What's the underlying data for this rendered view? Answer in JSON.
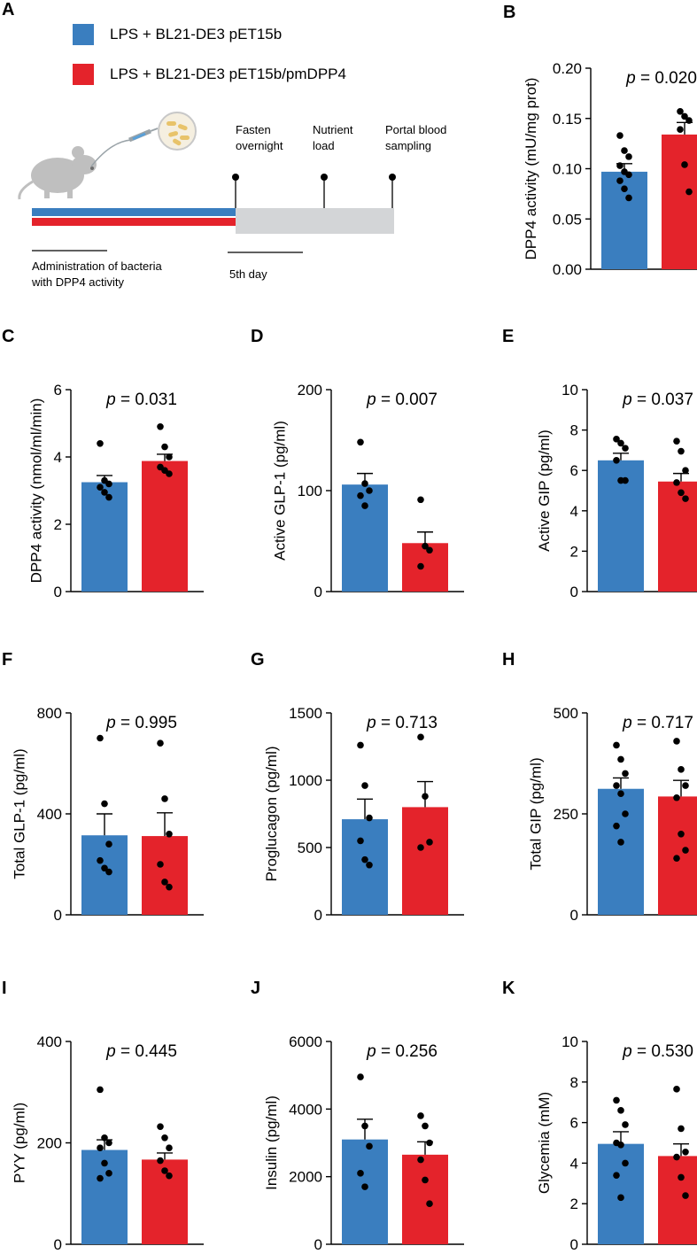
{
  "colors": {
    "group1": "#3a7ebf",
    "group2": "#e4232b",
    "timeline_gray": "#d3d5d7",
    "mouse": "#bfbfbf"
  },
  "legend": {
    "group1_label": "LPS + BL21-DE3 pET15b",
    "group2_label": "LPS + BL21-DE3 pET15b/pmDPP4"
  },
  "schematic": {
    "panel_label": "A",
    "icons": [
      "mouse-icon",
      "syringe-icon",
      "petri-dish-icon"
    ],
    "step1": [
      "Fasten",
      "overnight"
    ],
    "step2": [
      "Nutrient",
      "load"
    ],
    "step3": [
      "Portal blood",
      "sampling"
    ],
    "admin_label": [
      "Administration of bacteria",
      "with DPP4 activity"
    ],
    "day_label": "5th day"
  },
  "chart_data": [
    {
      "id": "B",
      "type": "bar",
      "panel_label": "B",
      "ylabel": "DPP4 activity (mU/mg prot)",
      "ylim": [
        0,
        0.2
      ],
      "ticks": [
        0,
        0.05,
        0.1,
        0.15,
        0.2
      ],
      "tick_labels": [
        "0.00",
        "0.05",
        "0.10",
        "0.15",
        "0.20"
      ],
      "p_prefix": "p",
      "p_suffix": " = 0.020",
      "series": [
        {
          "name": "LPS + BL21-DE3 pET15b",
          "mean": 0.097,
          "sem": 0.008,
          "points": [
            0.133,
            0.118,
            0.112,
            0.103,
            0.097,
            0.094,
            0.088,
            0.08,
            0.071
          ]
        },
        {
          "name": "LPS + BL21-DE3 pET15b/pmDPP4",
          "mean": 0.134,
          "sem": 0.012,
          "points": [
            0.157,
            0.152,
            0.148,
            0.139,
            0.104,
            0.077
          ]
        }
      ]
    },
    {
      "id": "C",
      "type": "bar",
      "panel_label": "C",
      "ylabel": "DPP4 activity (nmol/ml/min)",
      "ylim": [
        0,
        6
      ],
      "ticks": [
        0,
        2,
        4,
        6
      ],
      "tick_labels": [
        "0",
        "2",
        "4",
        "6"
      ],
      "p_prefix": "p",
      "p_suffix": " = 0.031",
      "series": [
        {
          "name": "LPS + BL21-DE3 pET15b",
          "mean": 3.25,
          "sem": 0.2,
          "points": [
            4.4,
            3.3,
            3.2,
            3.1,
            2.95,
            2.8
          ]
        },
        {
          "name": "LPS + BL21-DE3 pET15b/pmDPP4",
          "mean": 3.88,
          "sem": 0.2,
          "points": [
            4.9,
            4.3,
            4.0,
            3.7,
            3.6,
            3.5
          ]
        }
      ]
    },
    {
      "id": "D",
      "type": "bar",
      "panel_label": "D",
      "ylabel": "Active GLP-1 (pg/ml)",
      "ylim": [
        0,
        200
      ],
      "ticks": [
        0,
        100,
        200
      ],
      "tick_labels": [
        "0",
        "100",
        "200"
      ],
      "p_prefix": "p",
      "p_suffix": " = 0.007",
      "series": [
        {
          "name": "LPS + BL21-DE3 pET15b",
          "mean": 106,
          "sem": 11,
          "points": [
            148,
            107,
            100,
            95,
            85
          ]
        },
        {
          "name": "LPS + BL21-DE3 pET15b/pmDPP4",
          "mean": 48,
          "sem": 11,
          "points": [
            91,
            45,
            41,
            25
          ]
        }
      ]
    },
    {
      "id": "E",
      "type": "bar",
      "panel_label": "E",
      "ylabel": "Active GIP (pg/ml)",
      "ylim": [
        0,
        10
      ],
      "ticks": [
        0,
        2,
        4,
        6,
        8,
        10
      ],
      "tick_labels": [
        "0",
        "2",
        "4",
        "6",
        "8",
        "10"
      ],
      "p_prefix": "p",
      "p_suffix": " = 0.037",
      "series": [
        {
          "name": "LPS + BL21-DE3 pET15b",
          "mean": 6.5,
          "sem": 0.35,
          "points": [
            7.55,
            7.35,
            7.1,
            6.5,
            5.5,
            5.5
          ]
        },
        {
          "name": "LPS + BL21-DE3 pET15b/pmDPP4",
          "mean": 5.45,
          "sem": 0.4,
          "points": [
            7.45,
            6.95,
            6.0,
            5.4,
            4.9,
            4.6
          ]
        }
      ]
    },
    {
      "id": "F",
      "type": "bar",
      "panel_label": "F",
      "ylabel": "Total GLP-1 (pg/ml)",
      "ylim": [
        0,
        800
      ],
      "ticks": [
        0,
        400,
        800
      ],
      "tick_labels": [
        "0",
        "400",
        "800"
      ],
      "p_prefix": "p",
      "p_suffix": " = 0.995",
      "series": [
        {
          "name": "LPS + BL21-DE3 pET15b",
          "mean": 315,
          "sem": 85,
          "points": [
            700,
            440,
            280,
            215,
            185,
            170
          ]
        },
        {
          "name": "LPS + BL21-DE3 pET15b/pmDPP4",
          "mean": 312,
          "sem": 92,
          "points": [
            680,
            460,
            320,
            200,
            130,
            110
          ]
        }
      ]
    },
    {
      "id": "G",
      "type": "bar",
      "panel_label": "G",
      "ylabel": "Proglucagon (pg/ml)",
      "ylim": [
        0,
        1500
      ],
      "ticks": [
        0,
        500,
        1000,
        1500
      ],
      "tick_labels": [
        "0",
        "500",
        "1000",
        "1500"
      ],
      "p_prefix": "p",
      "p_suffix": " = 0.713",
      "series": [
        {
          "name": "LPS + BL21-DE3 pET15b",
          "mean": 710,
          "sem": 150,
          "points": [
            1260,
            960,
            720,
            550,
            410,
            370
          ]
        },
        {
          "name": "LPS + BL21-DE3 pET15b/pmDPP4",
          "mean": 800,
          "sem": 190,
          "points": [
            1320,
            880,
            540,
            500
          ]
        }
      ]
    },
    {
      "id": "H",
      "type": "bar",
      "panel_label": "H",
      "ylabel": "Total GIP (pg/ml)",
      "ylim": [
        0,
        500
      ],
      "ticks": [
        0,
        250,
        500
      ],
      "tick_labels": [
        "0",
        "250",
        "500"
      ],
      "p_prefix": "p",
      "p_suffix": " = 0.717",
      "series": [
        {
          "name": "LPS + BL21-DE3 pET15b",
          "mean": 312,
          "sem": 27,
          "points": [
            420,
            385,
            350,
            320,
            300,
            250,
            220,
            180
          ]
        },
        {
          "name": "LPS + BL21-DE3 pET15b/pmDPP4",
          "mean": 293,
          "sem": 40,
          "points": [
            430,
            360,
            320,
            290,
            200,
            160,
            140
          ]
        }
      ]
    },
    {
      "id": "I",
      "type": "bar",
      "panel_label": "I",
      "ylabel": "PYY (pg/ml)",
      "ylim": [
        0,
        400
      ],
      "ticks": [
        0,
        200,
        400
      ],
      "tick_labels": [
        "0",
        "200",
        "400"
      ],
      "p_prefix": "p",
      "p_suffix": " = 0.445",
      "series": [
        {
          "name": "LPS + BL21-DE3 pET15b",
          "mean": 186,
          "sem": 20,
          "points": [
            305,
            210,
            200,
            190,
            160,
            140,
            130
          ]
        },
        {
          "name": "LPS + BL21-DE3 pET15b/pmDPP4",
          "mean": 167,
          "sem": 13,
          "points": [
            232,
            210,
            190,
            165,
            145,
            135
          ]
        }
      ]
    },
    {
      "id": "J",
      "type": "bar",
      "panel_label": "J",
      "ylabel": "Insulin (pg/ml)",
      "ylim": [
        0,
        6000
      ],
      "ticks": [
        0,
        2000,
        4000,
        6000
      ],
      "tick_labels": [
        "0",
        "2000",
        "4000",
        "6000"
      ],
      "p_prefix": "p",
      "p_suffix": " = 0.256",
      "series": [
        {
          "name": "LPS + BL21-DE3 pET15b",
          "mean": 3100,
          "sem": 600,
          "points": [
            4950,
            3500,
            2900,
            2100,
            1700
          ]
        },
        {
          "name": "LPS + BL21-DE3 pET15b/pmDPP4",
          "mean": 2650,
          "sem": 380,
          "points": [
            3800,
            3500,
            3000,
            2500,
            1900,
            1200
          ]
        }
      ]
    },
    {
      "id": "K",
      "type": "bar",
      "panel_label": "K",
      "ylabel": "Glycemia (mM)",
      "ylim": [
        0,
        10
      ],
      "ticks": [
        0,
        2,
        4,
        6,
        8,
        10
      ],
      "tick_labels": [
        "0",
        "2",
        "4",
        "6",
        "8",
        "10"
      ],
      "p_prefix": "p",
      "p_suffix": " = 0.530",
      "series": [
        {
          "name": "LPS + BL21-DE3 pET15b",
          "mean": 4.95,
          "sem": 0.6,
          "points": [
            7.1,
            6.6,
            5.9,
            5.0,
            4.9,
            4.0,
            3.4,
            2.3
          ]
        },
        {
          "name": "LPS + BL21-DE3 pET15b/pmDPP4",
          "mean": 4.35,
          "sem": 0.6,
          "points": [
            7.65,
            5.7,
            4.55,
            4.3,
            3.3,
            2.4
          ]
        }
      ]
    }
  ]
}
